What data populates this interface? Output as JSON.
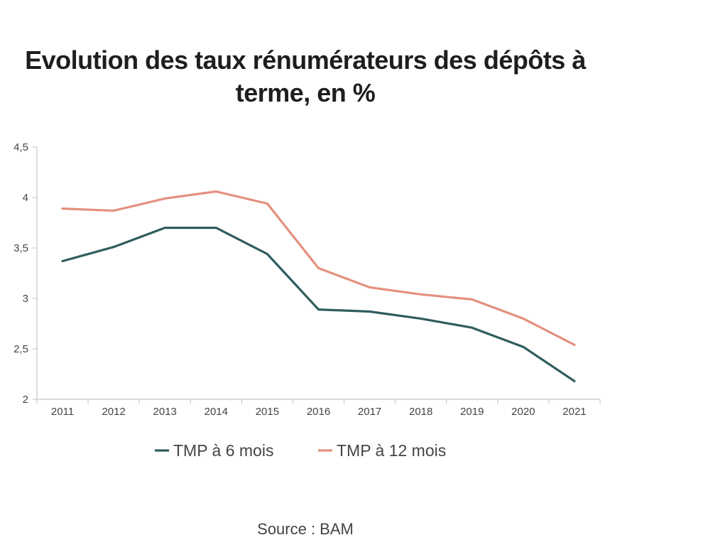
{
  "title": {
    "line1": "Evolution des taux rénumérateurs des dépôts à",
    "line2": "terme, en %"
  },
  "source": "Source : BAM",
  "colors": {
    "series1": "#2f5d5e",
    "series2": "#e3907d",
    "axis": "#c8c8c8"
  },
  "chart_data": {
    "type": "line",
    "title": "Evolution des taux rénumérateurs des dépôts à terme, en %",
    "xlabel": "",
    "ylabel": "",
    "categories": [
      "2011",
      "2012",
      "2013",
      "2014",
      "2015",
      "2016",
      "2017",
      "2018",
      "2019",
      "2020",
      "2021"
    ],
    "y_ticks": [
      "2",
      "2,5",
      "3",
      "3,5",
      "4",
      "4,5"
    ],
    "ylim": [
      2,
      4.5
    ],
    "grid": false,
    "legend_position": "bottom",
    "series": [
      {
        "name": "TMP à 6 mois",
        "color": "#2f5d5e",
        "values": [
          3.37,
          3.51,
          3.7,
          3.7,
          3.44,
          2.89,
          2.87,
          2.8,
          2.71,
          2.52,
          2.18
        ]
      },
      {
        "name": "TMP à 12 mois",
        "color": "#e3907d",
        "values": [
          3.89,
          3.87,
          3.99,
          4.06,
          3.94,
          3.3,
          3.11,
          3.04,
          2.99,
          2.8,
          2.54
        ]
      }
    ]
  }
}
